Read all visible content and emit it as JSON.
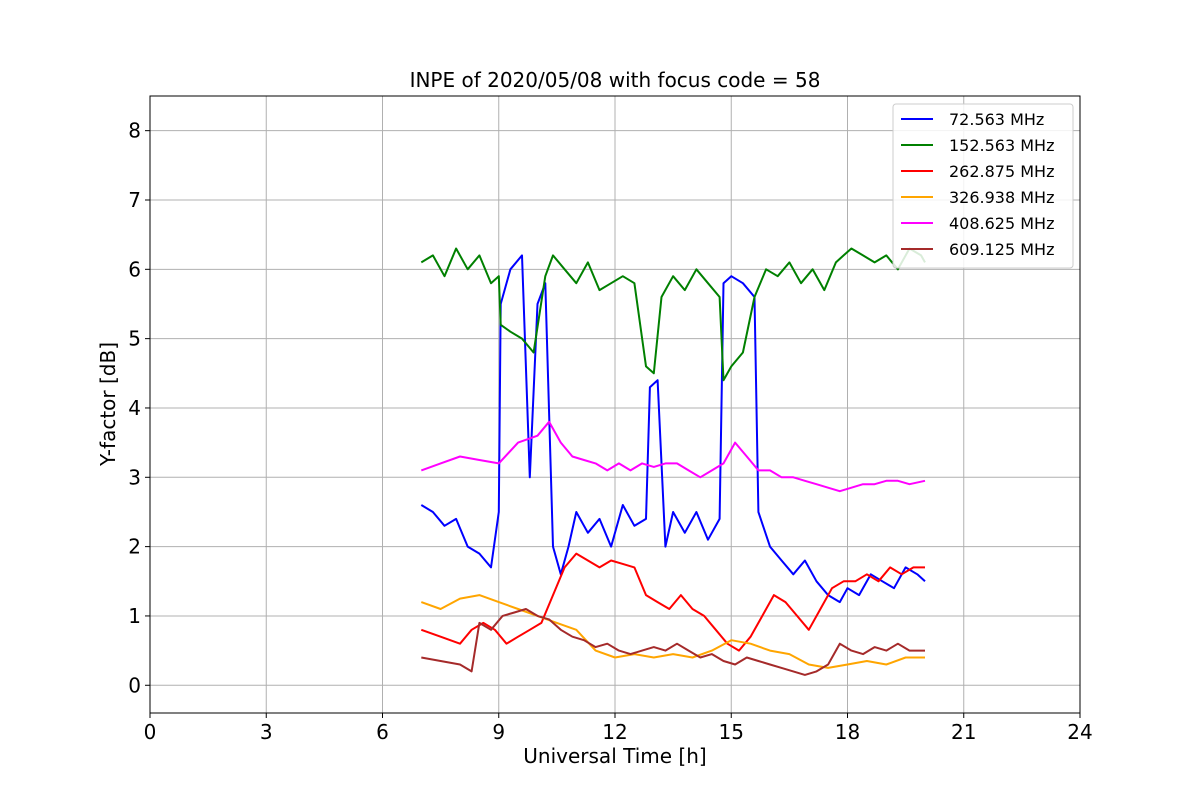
{
  "chart_data": {
    "type": "line",
    "title": "INPE of 2020/05/08 with focus code = 58",
    "xlabel": "Universal Time [h]",
    "ylabel": "Y-factor [dB]",
    "xlim": [
      0,
      24
    ],
    "ylim": [
      -0.4,
      8.5
    ],
    "x_ticks": [
      0,
      3,
      6,
      9,
      12,
      15,
      18,
      21,
      24
    ],
    "y_ticks": [
      0,
      1,
      2,
      3,
      4,
      5,
      6,
      7,
      8
    ],
    "grid": true,
    "legend_position": "top-right",
    "series": [
      {
        "name": " 72.563 MHz",
        "color": "#0000ff",
        "x": [
          7.0,
          7.3,
          7.6,
          7.9,
          8.2,
          8.5,
          8.8,
          9.0,
          9.05,
          9.3,
          9.6,
          9.8,
          10.0,
          10.2,
          10.4,
          10.6,
          10.8,
          11.0,
          11.3,
          11.6,
          11.9,
          12.2,
          12.5,
          12.8,
          12.9,
          13.1,
          13.3,
          13.5,
          13.8,
          14.1,
          14.4,
          14.7,
          14.8,
          15.0,
          15.3,
          15.6,
          15.7,
          16.0,
          16.3,
          16.6,
          16.9,
          17.2,
          17.5,
          17.8,
          18.0,
          18.3,
          18.6,
          18.9,
          19.2,
          19.5,
          19.8,
          20.0
        ],
        "y": [
          2.6,
          2.5,
          2.3,
          2.4,
          2.0,
          1.9,
          1.7,
          2.5,
          5.5,
          6.0,
          6.2,
          3.0,
          5.5,
          5.8,
          2.0,
          1.6,
          2.0,
          2.5,
          2.2,
          2.4,
          2.0,
          2.6,
          2.3,
          2.4,
          4.3,
          4.4,
          2.0,
          2.5,
          2.2,
          2.5,
          2.1,
          2.4,
          5.8,
          5.9,
          5.8,
          5.6,
          2.5,
          2.0,
          1.8,
          1.6,
          1.8,
          1.5,
          1.3,
          1.2,
          1.4,
          1.3,
          1.6,
          1.5,
          1.4,
          1.7,
          1.6,
          1.5
        ]
      },
      {
        "name": "152.563 MHz",
        "color": "#008000",
        "x": [
          7.0,
          7.3,
          7.6,
          7.9,
          8.2,
          8.5,
          8.8,
          9.0,
          9.05,
          9.3,
          9.6,
          9.9,
          10.2,
          10.4,
          10.7,
          11.0,
          11.3,
          11.6,
          11.9,
          12.2,
          12.5,
          12.8,
          13.0,
          13.2,
          13.5,
          13.8,
          14.1,
          14.4,
          14.7,
          14.8,
          15.0,
          15.3,
          15.6,
          15.9,
          16.2,
          16.5,
          16.8,
          17.1,
          17.4,
          17.7,
          17.9,
          18.1,
          18.4,
          18.7,
          19.0,
          19.3,
          19.6,
          19.9,
          20.0
        ],
        "y": [
          6.1,
          6.2,
          5.9,
          6.3,
          6.0,
          6.2,
          5.8,
          5.9,
          5.2,
          5.1,
          5.0,
          4.8,
          5.9,
          6.2,
          6.0,
          5.8,
          6.1,
          5.7,
          5.8,
          5.9,
          5.8,
          4.6,
          4.5,
          5.6,
          5.9,
          5.7,
          6.0,
          5.8,
          5.6,
          4.4,
          4.6,
          4.8,
          5.6,
          6.0,
          5.9,
          6.1,
          5.8,
          6.0,
          5.7,
          6.1,
          6.2,
          6.3,
          6.2,
          6.1,
          6.2,
          6.0,
          6.3,
          6.2,
          6.1
        ]
      },
      {
        "name": "262.875 MHz",
        "color": "#ff0000",
        "x": [
          7.0,
          7.5,
          8.0,
          8.3,
          8.6,
          8.9,
          9.2,
          9.5,
          9.8,
          10.1,
          10.4,
          10.7,
          11.0,
          11.3,
          11.6,
          11.9,
          12.2,
          12.5,
          12.8,
          13.1,
          13.4,
          13.7,
          14.0,
          14.3,
          14.6,
          14.9,
          15.2,
          15.5,
          15.8,
          16.1,
          16.4,
          16.7,
          17.0,
          17.3,
          17.6,
          17.9,
          18.2,
          18.5,
          18.8,
          19.1,
          19.4,
          19.7,
          20.0
        ],
        "y": [
          0.8,
          0.7,
          0.6,
          0.8,
          0.9,
          0.8,
          0.6,
          0.7,
          0.8,
          0.9,
          1.3,
          1.7,
          1.9,
          1.8,
          1.7,
          1.8,
          1.75,
          1.7,
          1.3,
          1.2,
          1.1,
          1.3,
          1.1,
          1.0,
          0.8,
          0.6,
          0.5,
          0.7,
          1.0,
          1.3,
          1.2,
          1.0,
          0.8,
          1.1,
          1.4,
          1.5,
          1.5,
          1.6,
          1.5,
          1.7,
          1.6,
          1.7,
          1.7
        ]
      },
      {
        "name": "326.938 MHz",
        "color": "#ffa500",
        "x": [
          7.0,
          7.5,
          8.0,
          8.5,
          9.0,
          9.5,
          10.0,
          10.5,
          11.0,
          11.5,
          12.0,
          12.5,
          13.0,
          13.5,
          14.0,
          14.5,
          15.0,
          15.5,
          16.0,
          16.5,
          17.0,
          17.5,
          18.0,
          18.5,
          19.0,
          19.5,
          20.0
        ],
        "y": [
          1.2,
          1.1,
          1.25,
          1.3,
          1.2,
          1.1,
          1.0,
          0.9,
          0.8,
          0.5,
          0.4,
          0.45,
          0.4,
          0.45,
          0.4,
          0.5,
          0.65,
          0.6,
          0.5,
          0.45,
          0.3,
          0.25,
          0.3,
          0.35,
          0.3,
          0.4,
          0.4
        ]
      },
      {
        "name": "408.625 MHz",
        "color": "#ff00ff",
        "x": [
          7.0,
          7.5,
          8.0,
          8.5,
          9.0,
          9.5,
          10.0,
          10.3,
          10.6,
          10.9,
          11.2,
          11.5,
          11.8,
          12.1,
          12.4,
          12.7,
          13.0,
          13.3,
          13.6,
          13.9,
          14.2,
          14.5,
          14.8,
          15.1,
          15.4,
          15.7,
          16.0,
          16.3,
          16.6,
          16.9,
          17.2,
          17.5,
          17.8,
          18.1,
          18.4,
          18.7,
          19.0,
          19.3,
          19.6,
          20.0
        ],
        "y": [
          3.1,
          3.2,
          3.3,
          3.25,
          3.2,
          3.5,
          3.6,
          3.8,
          3.5,
          3.3,
          3.25,
          3.2,
          3.1,
          3.2,
          3.1,
          3.2,
          3.15,
          3.2,
          3.2,
          3.1,
          3.0,
          3.1,
          3.2,
          3.5,
          3.3,
          3.1,
          3.1,
          3.0,
          3.0,
          2.95,
          2.9,
          2.85,
          2.8,
          2.85,
          2.9,
          2.9,
          2.95,
          2.95,
          2.9,
          2.95
        ]
      },
      {
        "name": "609.125 MHz",
        "color": "#a52a2a",
        "x": [
          7.0,
          7.5,
          8.0,
          8.3,
          8.5,
          8.8,
          9.1,
          9.4,
          9.7,
          10.0,
          10.3,
          10.6,
          10.9,
          11.2,
          11.5,
          11.8,
          12.1,
          12.4,
          12.7,
          13.0,
          13.3,
          13.6,
          13.9,
          14.2,
          14.5,
          14.8,
          15.1,
          15.4,
          15.7,
          16.0,
          16.3,
          16.6,
          16.9,
          17.2,
          17.5,
          17.8,
          18.1,
          18.4,
          18.7,
          19.0,
          19.3,
          19.6,
          20.0
        ],
        "y": [
          0.4,
          0.35,
          0.3,
          0.2,
          0.9,
          0.8,
          1.0,
          1.05,
          1.1,
          1.0,
          0.95,
          0.8,
          0.7,
          0.65,
          0.55,
          0.6,
          0.5,
          0.45,
          0.5,
          0.55,
          0.5,
          0.6,
          0.5,
          0.4,
          0.45,
          0.35,
          0.3,
          0.4,
          0.35,
          0.3,
          0.25,
          0.2,
          0.15,
          0.2,
          0.3,
          0.6,
          0.5,
          0.45,
          0.55,
          0.5,
          0.6,
          0.5,
          0.5
        ]
      }
    ]
  }
}
